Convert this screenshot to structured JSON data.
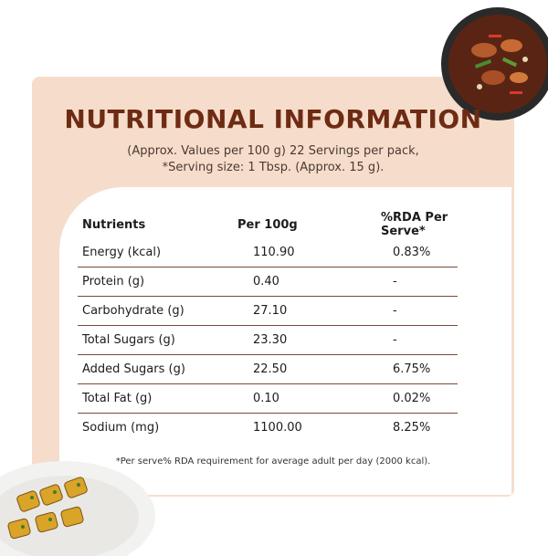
{
  "title": "NUTRITIONAL INFORMATION",
  "subtitle_line1": "(Approx. Values per 100 g) 22 Servings per pack,",
  "subtitle_line2": "*Serving size: 1 Tbsp. (Approx. 15 g).",
  "table": {
    "headers": [
      "Nutrients",
      "Per 100g",
      "%RDA Per Serve*"
    ],
    "rows": [
      [
        "Energy (kcal)",
        "110.90",
        "0.83%"
      ],
      [
        "Protein (g)",
        "0.40",
        "-"
      ],
      [
        "Carbohydrate (g)",
        "27.10",
        "-"
      ],
      [
        "Total Sugars (g)",
        "23.30",
        "-"
      ],
      [
        "Added Sugars (g)",
        "22.50",
        "6.75%"
      ],
      [
        "Total Fat (g)",
        "0.10",
        "0.02%"
      ],
      [
        "Sodium (mg)",
        "1100.00",
        "8.25%"
      ]
    ]
  },
  "footnote": "*Per serve% RDA requirement for average adult per day (2000 kcal).",
  "colors": {
    "card": "#f6ddcb",
    "title": "#6e2b13",
    "rule": "#7a4a38"
  },
  "images": [
    "stir-fry-bowl-image",
    "grilled-corn-plate-image"
  ]
}
